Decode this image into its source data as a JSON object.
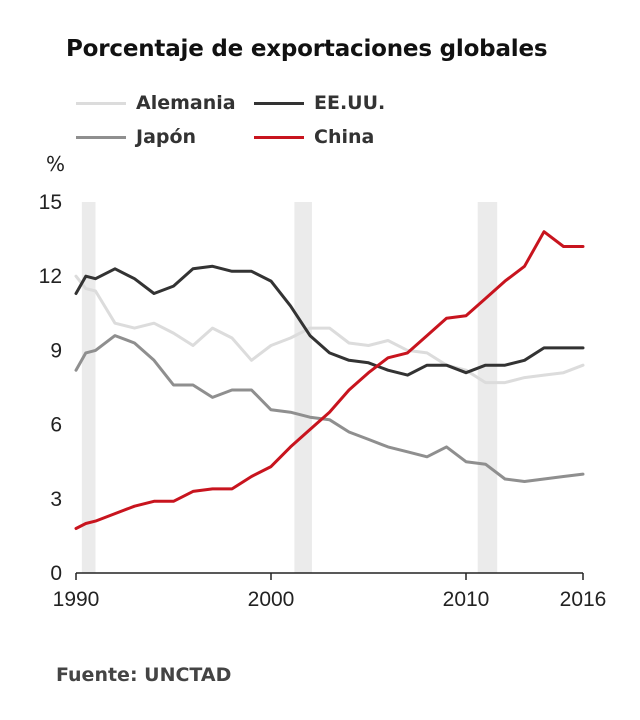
{
  "chart_data": {
    "type": "line",
    "title": "Porcentaje de exportaciones globales",
    "unit_label": "%",
    "source": "Fuente: UNCTAD",
    "xlim": [
      1990,
      2016
    ],
    "ylim": [
      0,
      15
    ],
    "x_ticks": [
      "1990",
      "2000",
      "2010",
      "2016"
    ],
    "y_ticks": [
      "0",
      "3",
      "6",
      "9",
      "12",
      "15"
    ],
    "shaded_periods": [
      [
        1990.3,
        1991.0
      ],
      [
        2001.2,
        2002.1
      ],
      [
        2010.6,
        2011.6
      ]
    ],
    "x": [
      1990,
      1990.5,
      1991,
      1992,
      1993,
      1994,
      1995,
      1996,
      1997,
      1998,
      1999,
      2000,
      2001,
      2002,
      2003,
      2004,
      2005,
      2006,
      2007,
      2008,
      2009,
      2010,
      2011,
      2012,
      2013,
      2014,
      2015,
      2016
    ],
    "series": [
      {
        "name": "Alemania",
        "color": "#dcdcdc",
        "values": [
          12.0,
          11.5,
          11.4,
          10.1,
          9.9,
          10.1,
          9.7,
          9.2,
          9.9,
          9.5,
          8.6,
          9.2,
          9.5,
          9.9,
          9.9,
          9.3,
          9.2,
          9.4,
          9.0,
          8.9,
          8.4,
          8.2,
          7.7,
          7.7,
          7.9,
          8.0,
          8.1,
          8.4
        ]
      },
      {
        "name": "EE.UU.",
        "color": "#333333",
        "values": [
          11.3,
          12.0,
          11.9,
          12.3,
          11.9,
          11.3,
          11.6,
          12.3,
          12.4,
          12.2,
          12.2,
          11.8,
          10.8,
          9.6,
          8.9,
          8.6,
          8.5,
          8.2,
          8.0,
          8.4,
          8.4,
          8.1,
          8.4,
          8.4,
          8.6,
          9.1,
          9.1,
          9.1
        ]
      },
      {
        "name": "Japón",
        "color": "#8f8f8f",
        "values": [
          8.2,
          8.9,
          9.0,
          9.6,
          9.3,
          8.6,
          7.6,
          7.6,
          7.1,
          7.4,
          7.4,
          6.6,
          6.5,
          6.3,
          6.2,
          5.7,
          5.4,
          5.1,
          4.9,
          4.7,
          5.1,
          4.5,
          4.4,
          3.8,
          3.7,
          3.8,
          3.9,
          4.0
        ]
      },
      {
        "name": "China",
        "color": "#c8141e",
        "values": [
          1.8,
          2.0,
          2.1,
          2.4,
          2.7,
          2.9,
          2.9,
          3.3,
          3.4,
          3.4,
          3.9,
          4.3,
          5.1,
          5.8,
          6.5,
          7.4,
          8.1,
          8.7,
          8.9,
          9.6,
          10.3,
          10.4,
          11.1,
          11.8,
          12.4,
          13.8,
          13.2,
          13.2
        ]
      }
    ]
  }
}
